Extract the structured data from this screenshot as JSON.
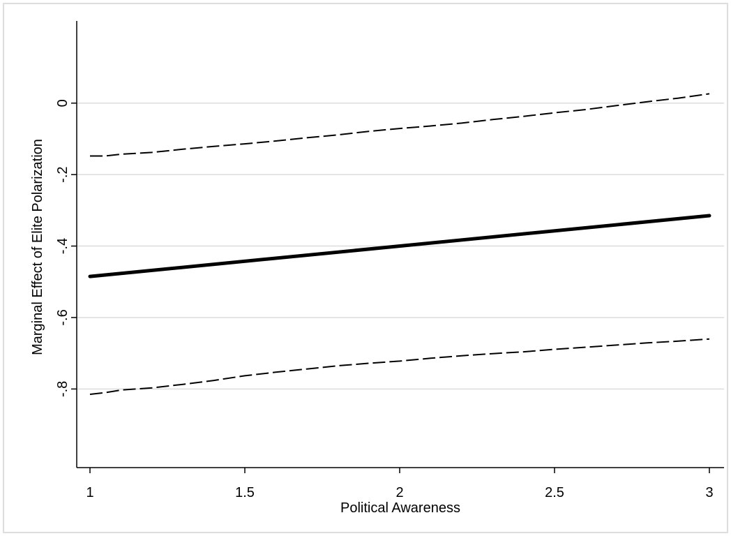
{
  "chart_data": {
    "type": "line",
    "title": "",
    "xlabel": "Political Awareness",
    "ylabel": "Marginal Effect of Elite Polarization",
    "xlim": [
      1,
      3
    ],
    "ylim": [
      -1.02,
      0.23
    ],
    "x_ticks": [
      1,
      1.5,
      2,
      2.5,
      3
    ],
    "x_tick_labels": [
      "1",
      "1.5",
      "2",
      "2.5",
      "3"
    ],
    "y_ticks": [
      0,
      -0.2,
      -0.4,
      -0.6,
      -0.8
    ],
    "y_tick_labels": [
      "0",
      "-.2",
      "-.4",
      "-.6",
      "-.8"
    ],
    "grid": true,
    "series": [
      {
        "style": "solid-thick",
        "color": "#000000",
        "x": [
          1,
          3
        ],
        "y": [
          -0.485,
          -0.315
        ]
      },
      {
        "style": "dashed",
        "color": "#000000",
        "x": [
          1,
          1.05,
          1.1,
          1.2,
          1.3,
          1.4,
          1.5,
          1.6,
          1.7,
          1.8,
          1.9,
          2,
          2.1,
          2.2,
          2.3,
          2.4,
          2.5,
          2.6,
          2.7,
          2.8,
          2.9,
          3
        ],
        "y": [
          -0.148,
          -0.148,
          -0.143,
          -0.138,
          -0.129,
          -0.121,
          -0.114,
          -0.106,
          -0.097,
          -0.089,
          -0.079,
          -0.071,
          -0.064,
          -0.056,
          -0.046,
          -0.037,
          -0.027,
          -0.018,
          -0.007,
          0.004,
          0.014,
          0.026
        ]
      },
      {
        "style": "dashed",
        "color": "#000000",
        "x": [
          1,
          1.05,
          1.1,
          1.2,
          1.3,
          1.4,
          1.5,
          1.6,
          1.7,
          1.8,
          1.9,
          2,
          2.1,
          2.2,
          2.3,
          2.4,
          2.5,
          2.6,
          2.7,
          2.8,
          2.9,
          3
        ],
        "y": [
          -0.815,
          -0.81,
          -0.803,
          -0.797,
          -0.787,
          -0.776,
          -0.763,
          -0.753,
          -0.744,
          -0.735,
          -0.728,
          -0.722,
          -0.714,
          -0.707,
          -0.701,
          -0.696,
          -0.689,
          -0.683,
          -0.677,
          -0.671,
          -0.666,
          -0.66
        ]
      }
    ]
  }
}
